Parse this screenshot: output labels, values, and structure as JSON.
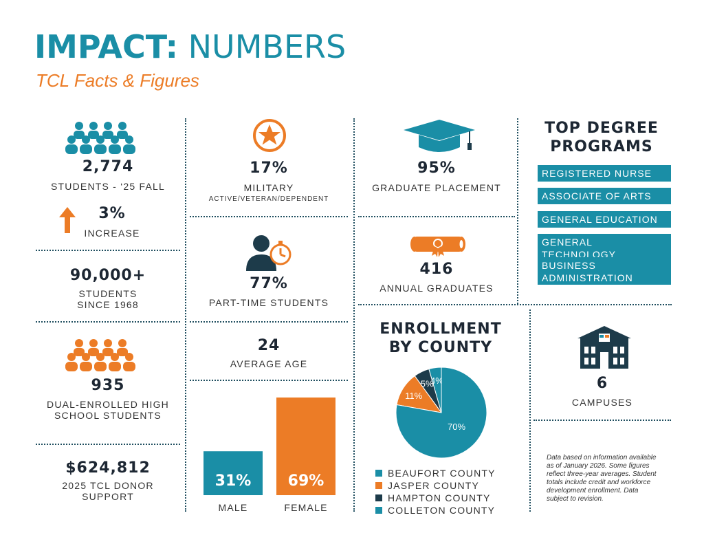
{
  "header": {
    "title_bold": "IMPACT:",
    "title_light": " NUMBERS",
    "subtitle": "TCL Facts & Figures"
  },
  "stats": {
    "students": {
      "value": "2,774",
      "label": "STUDENTS - ‘25 FALL"
    },
    "increase": {
      "value": "3%",
      "label": "INCREASE"
    },
    "since": {
      "value": "90,000+",
      "label_line1": "STUDENTS",
      "label_line2": "SINCE 1968"
    },
    "dual": {
      "value": "935",
      "label_line1": "DUAL-ENROLLED HIGH",
      "label_line2": "SCHOOL STUDENTS"
    },
    "donor": {
      "value": "$624,812",
      "label_line1": "2025 TCL DONOR",
      "label_line2": "SUPPORT"
    },
    "military": {
      "value": "17%",
      "label": "MILITARY",
      "sublabel": "ACTIVE/VETERAN/DEPENDENT"
    },
    "parttime": {
      "value": "77%",
      "label": "PART-TIME STUDENTS"
    },
    "age": {
      "value": "24",
      "label": "AVERAGE AGE"
    },
    "placement": {
      "value": "95%",
      "label": "GRADUATE PLACEMENT"
    },
    "graduates": {
      "value": "416",
      "label": "ANNUAL GRADUATES"
    },
    "campuses": {
      "value": "6",
      "label": "CAMPUSES"
    }
  },
  "top_programs": {
    "title_line1": "TOP DEGREE",
    "title_line2": "PROGRAMS",
    "items": [
      "REGISTERED NURSE",
      "ASSOCIATE OF ARTS",
      "GENERAL EDUCATION",
      "GENERAL TECHNOLOGY",
      "BUSINESS ADMINISTRATION"
    ],
    "business_line1": "BUSINESS",
    "business_line2": "ADMINISTRATION"
  },
  "enrollment": {
    "title_line1": "ENROLLMENT",
    "title_line2": "BY COUNTY"
  },
  "footnote": {
    "line1": "Data based on information available",
    "line2": "as of January 2026. Some figures",
    "line3": "reflect three-year averages. Student",
    "line4": "totals include credit and workforce",
    "line5": "development enrollment. Data",
    "line6": "subject to revision."
  },
  "colors": {
    "teal": "#1a8ea6",
    "orange": "#ec7c26",
    "navy": "#1d3b4a"
  },
  "chart_data": [
    {
      "type": "pie",
      "title": "ENROLLMENT BY COUNTY",
      "labels": [
        "BEAUFORT COUNTY",
        "JASPER COUNTY",
        "HAMPTON COUNTY",
        "COLLETON COUNTY"
      ],
      "values": [
        70,
        11,
        5,
        4
      ],
      "value_labels": [
        "70%",
        "11%",
        "5%",
        "4%"
      ],
      "colors": [
        "#1a8ea6",
        "#ec7c26",
        "#1d3b4a",
        "#1a8ea6"
      ],
      "legend_position": "bottom"
    },
    {
      "type": "bar",
      "categories": [
        "MALE",
        "FEMALE"
      ],
      "values": [
        31,
        69
      ],
      "value_labels": [
        "31%",
        "69%"
      ],
      "colors": [
        "#1a8ea6",
        "#ec7c26"
      ],
      "ylim": [
        0,
        100
      ]
    }
  ]
}
